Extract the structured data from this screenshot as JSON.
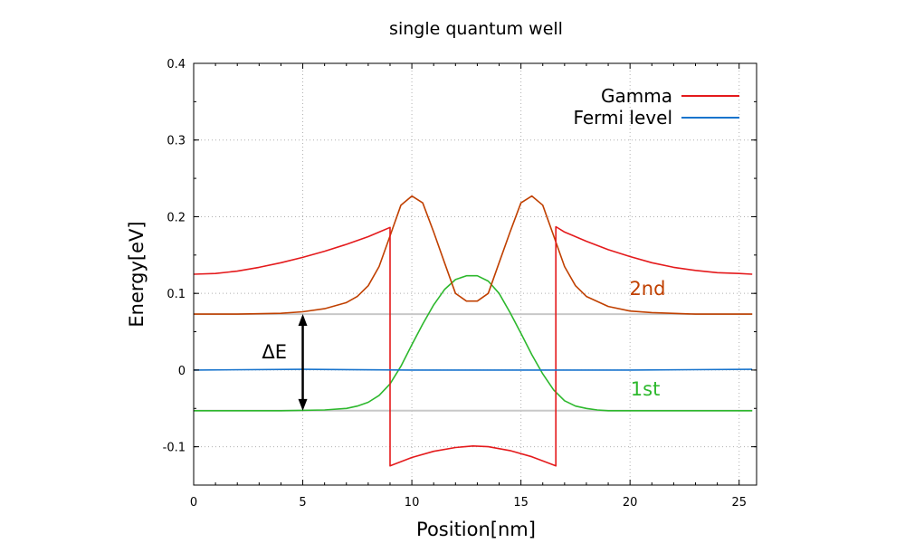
{
  "chart_data": {
    "type": "line",
    "title": "single quantum well",
    "xlabel": "Position[nm]",
    "ylabel": "Energy[eV]",
    "xlim": [
      0,
      25.8
    ],
    "ylim": [
      -0.15,
      0.4
    ],
    "xticks": [
      0,
      5,
      10,
      15,
      20,
      25
    ],
    "yticks": [
      -0.1,
      0,
      0.1,
      0.2,
      0.3,
      0.4
    ],
    "xtick_labels": [
      "0",
      "5",
      "10",
      "15",
      "20",
      "25"
    ],
    "ytick_labels": [
      "-0.1",
      "0",
      "0.1",
      "0.2",
      "0.3",
      "0.4"
    ],
    "grid": true,
    "legend_position": "top-right",
    "series": [
      {
        "name": "Gamma",
        "color": "#e41a1c",
        "x": [
          0,
          1,
          2,
          3,
          4,
          5,
          6,
          7,
          8,
          9,
          9,
          10,
          11,
          12,
          12.8,
          13.5,
          14.5,
          15.5,
          16.6,
          16.6,
          17,
          18,
          19,
          20,
          21,
          22,
          23,
          24,
          25,
          25.6
        ],
        "y": [
          0.125,
          0.126,
          0.129,
          0.134,
          0.14,
          0.147,
          0.155,
          0.164,
          0.174,
          0.186,
          -0.125,
          -0.114,
          -0.106,
          -0.101,
          -0.099,
          -0.1,
          -0.105,
          -0.113,
          -0.125,
          0.187,
          0.18,
          0.168,
          0.157,
          0.148,
          0.14,
          0.134,
          0.13,
          0.127,
          0.126,
          0.125
        ]
      },
      {
        "name": "Fermi level",
        "color": "#1874cd",
        "x": [
          0,
          5,
          10,
          15,
          20,
          25.6
        ],
        "y": [
          0.0,
          0.001,
          0.0,
          0.0,
          0.0,
          0.001
        ]
      },
      {
        "name": "",
        "color": "#c04000",
        "x": [
          0,
          2,
          4,
          5,
          6,
          7,
          7.5,
          8,
          8.5,
          9,
          9.5,
          10,
          10.5,
          11,
          11.5,
          12,
          12.5,
          13,
          13.5,
          14,
          14.5,
          15,
          15.5,
          16,
          16.5,
          17,
          17.5,
          18,
          19,
          20,
          21,
          23,
          25.6
        ],
        "y": [
          0.073,
          0.073,
          0.074,
          0.076,
          0.08,
          0.088,
          0.096,
          0.11,
          0.135,
          0.175,
          0.215,
          0.227,
          0.218,
          0.18,
          0.14,
          0.1,
          0.09,
          0.09,
          0.1,
          0.14,
          0.18,
          0.218,
          0.227,
          0.215,
          0.175,
          0.135,
          0.11,
          0.096,
          0.083,
          0.077,
          0.075,
          0.073,
          0.073
        ]
      },
      {
        "name": "",
        "color": "#2db82d",
        "x": [
          0,
          4,
          6,
          7,
          7.5,
          8,
          8.5,
          9,
          9.5,
          10,
          10.5,
          11,
          11.5,
          12,
          12.5,
          13,
          13.5,
          14,
          14.5,
          15,
          15.5,
          16,
          16.5,
          17,
          17.5,
          18,
          18.5,
          19,
          20,
          25.6
        ],
        "y": [
          -0.053,
          -0.053,
          -0.052,
          -0.05,
          -0.047,
          -0.042,
          -0.033,
          -0.018,
          0.005,
          0.033,
          0.06,
          0.085,
          0.105,
          0.118,
          0.123,
          0.123,
          0.116,
          0.1,
          0.075,
          0.048,
          0.02,
          -0.005,
          -0.026,
          -0.04,
          -0.047,
          -0.05,
          -0.052,
          -0.053,
          -0.053,
          -0.053
        ]
      },
      {
        "name": "",
        "color": "#c8c8c8",
        "x": [
          0,
          25.6
        ],
        "y": [
          0.073,
          0.073
        ]
      },
      {
        "name": "",
        "color": "#c8c8c8",
        "x": [
          0,
          25.6
        ],
        "y": [
          -0.053,
          -0.053
        ]
      }
    ],
    "annotations": [
      {
        "text": "2nd",
        "x": 20.8,
        "y": 0.098,
        "color": "#c04000"
      },
      {
        "text": "1st",
        "x": 20.7,
        "y": -0.033,
        "color": "#2db82d"
      },
      {
        "text": "ΔE",
        "x": 3.7,
        "y": 0.015,
        "color": "#000000"
      }
    ],
    "arrow": {
      "x": 5,
      "y_from": -0.053,
      "y_to": 0.073
    }
  }
}
